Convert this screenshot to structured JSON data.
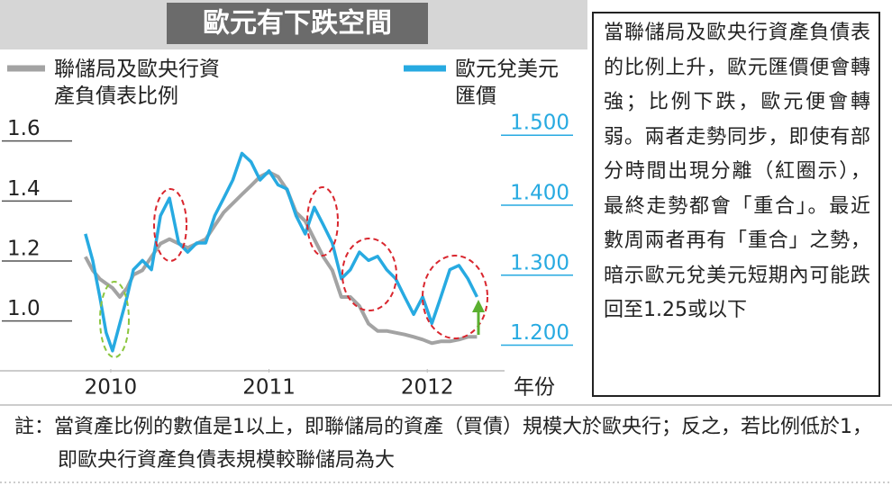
{
  "chart_data": {
    "type": "line",
    "title": "歐元有下跌空間",
    "x_label": "年份",
    "x": [
      2009.84,
      2009.886,
      2009.931,
      2009.971,
      2010.011,
      2010.057,
      2010.103,
      2010.143,
      2010.2,
      2010.257,
      2010.314,
      2010.371,
      2010.429,
      2010.486,
      2010.543,
      2010.6,
      2010.657,
      2010.714,
      2010.771,
      2010.829,
      2010.886,
      2010.943,
      2011.0,
      2011.057,
      2011.114,
      2011.171,
      2011.229,
      2011.286,
      2011.343,
      2011.4,
      2011.457,
      2011.514,
      2011.571,
      2011.629,
      2011.686,
      2011.743,
      2011.8,
      2011.857,
      2011.914,
      2011.971,
      2012.029,
      2012.086,
      2012.143,
      2012.2,
      2012.257,
      2012.314
    ],
    "xlim": [
      2009.3,
      2012.46
    ],
    "xticks": [
      2010,
      2011,
      2012
    ],
    "ylim": [
      0.84,
      1.68
    ],
    "yticks": [
      {
        "value": 1.0,
        "label": "1.0"
      },
      1.2,
      1.4,
      1.6
    ],
    "y2lim": [
      1.166,
      1.526
    ],
    "y2ticks": [
      {
        "value": 1.2,
        "label": "1.200"
      },
      {
        "value": 1.3,
        "label": "1.300"
      },
      {
        "value": 1.4,
        "label": "1.400"
      },
      {
        "value": 1.5,
        "label": "1.500"
      }
    ],
    "series": [
      {
        "name": "聯儲局及歐央行資產負債表比例",
        "color": "#a3a3a3",
        "axis": "y",
        "values": [
          1.214,
          1.169,
          1.14,
          1.125,
          1.11,
          1.08,
          1.11,
          1.154,
          1.169,
          1.214,
          1.258,
          1.273,
          1.258,
          1.244,
          1.258,
          1.273,
          1.318,
          1.362,
          1.392,
          1.422,
          1.451,
          1.481,
          1.496,
          1.481,
          1.437,
          1.362,
          1.333,
          1.273,
          1.214,
          1.169,
          1.08,
          1.08,
          1.05,
          0.991,
          0.967,
          0.967,
          0.961,
          0.955,
          0.947,
          0.938,
          0.926,
          0.932,
          0.932,
          0.938,
          0.947,
          0.947
        ]
      },
      {
        "name": "歐元兌美元匯價",
        "color": "#27aae1",
        "axis": "y2",
        "values": [
          1.359,
          1.321,
          1.269,
          1.218,
          1.192,
          1.231,
          1.269,
          1.308,
          1.321,
          1.308,
          1.385,
          1.41,
          1.346,
          1.333,
          1.346,
          1.346,
          1.385,
          1.41,
          1.436,
          1.474,
          1.462,
          1.436,
          1.449,
          1.429,
          1.423,
          1.385,
          1.359,
          1.397,
          1.372,
          1.346,
          1.295,
          1.308,
          1.333,
          1.321,
          1.327,
          1.308,
          1.295,
          1.269,
          1.244,
          1.269,
          1.231,
          1.269,
          1.308,
          1.314,
          1.295,
          1.269
        ]
      }
    ],
    "annotation": "當聯儲局及歐央行資產負債表的比例上升，歐元匯價便會轉強；比例下跌，歐元便會轉弱。兩者走勢同步，即使有部分時間出現分離（紅圈示），最終走勢都會「重合」。最近數周兩者再有「重合」之勢，暗示歐元兌美元短期內可能跌回至1.25或以下",
    "note": "註：當資產比例的數值是1以上，即聯儲局的資產（買債）規模大於歐央行；反之，若比例低於1，即歐央行資產負債表規模較聯儲局為大"
  }
}
